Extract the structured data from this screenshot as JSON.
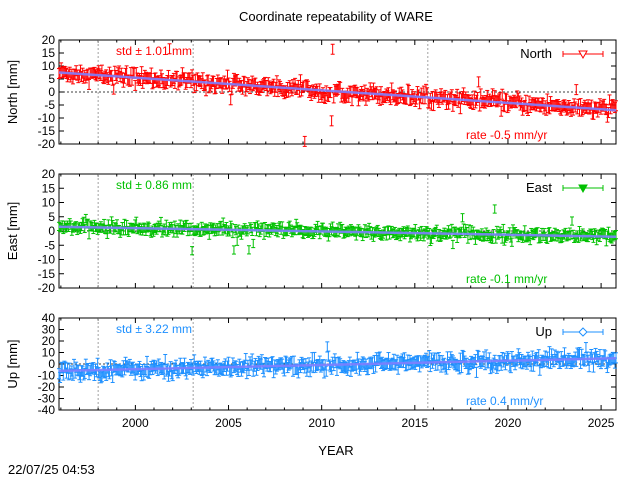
{
  "title": "Coordinate repeatability of WARE",
  "timestamp": "22/07/25 04:53",
  "xlabel": "YEAR",
  "x_ticks": [
    2000,
    2005,
    2010,
    2015,
    2020,
    2025
  ],
  "chart_data": [
    {
      "type": "scatter",
      "name": "North",
      "legend": "North",
      "ylabel": "North [mm]",
      "ylim": [
        -20,
        20
      ],
      "yticks": [
        -20,
        -15,
        -10,
        -5,
        0,
        5,
        10,
        15,
        20
      ],
      "xlim": [
        1995.9,
        2025.8
      ],
      "color": "#ff0000",
      "marker": "triangle-down-open",
      "std_label": "std ± 1.01 mm",
      "rate_label": "rate -0.5 mm/yr",
      "trend": {
        "start": [
          1995.9,
          7.5
        ],
        "end": [
          2025.8,
          -7.0
        ]
      },
      "scatter": 2.4,
      "vlines": [
        1998.0,
        2003.1,
        2015.7
      ]
    },
    {
      "type": "scatter",
      "name": "East",
      "legend": "East",
      "ylabel": "East [mm]",
      "ylim": [
        -20,
        20
      ],
      "yticks": [
        -20,
        -15,
        -10,
        -5,
        0,
        5,
        10,
        15,
        20
      ],
      "xlim": [
        1995.9,
        2025.8
      ],
      "color": "#00c000",
      "marker": "triangle-down-filled",
      "std_label": "std ± 0.86 mm",
      "rate_label": "rate -0.1 mm/yr",
      "trend": {
        "start": [
          1995.9,
          1.5
        ],
        "end": [
          2025.8,
          -2.0
        ]
      },
      "scatter": 1.8,
      "vlines": [
        1998.0,
        2003.1,
        2015.7
      ]
    },
    {
      "type": "scatter",
      "name": "Up",
      "legend": "Up",
      "ylabel": "Up [mm]",
      "ylim": [
        -40,
        40
      ],
      "yticks": [
        -40,
        -30,
        -20,
        -10,
        0,
        10,
        20,
        30,
        40
      ],
      "xlim": [
        1995.9,
        2025.8
      ],
      "color": "#1e90ff",
      "marker": "diamond-open",
      "std_label": "std ± 3.22 mm",
      "rate_label": "rate  0.4 mm/yr",
      "trend": {
        "start": [
          1995.9,
          -6.0
        ],
        "end": [
          2025.8,
          5.0
        ]
      },
      "scatter": 5.5,
      "vlines": [
        1998.0,
        2003.1,
        2015.7
      ]
    }
  ]
}
